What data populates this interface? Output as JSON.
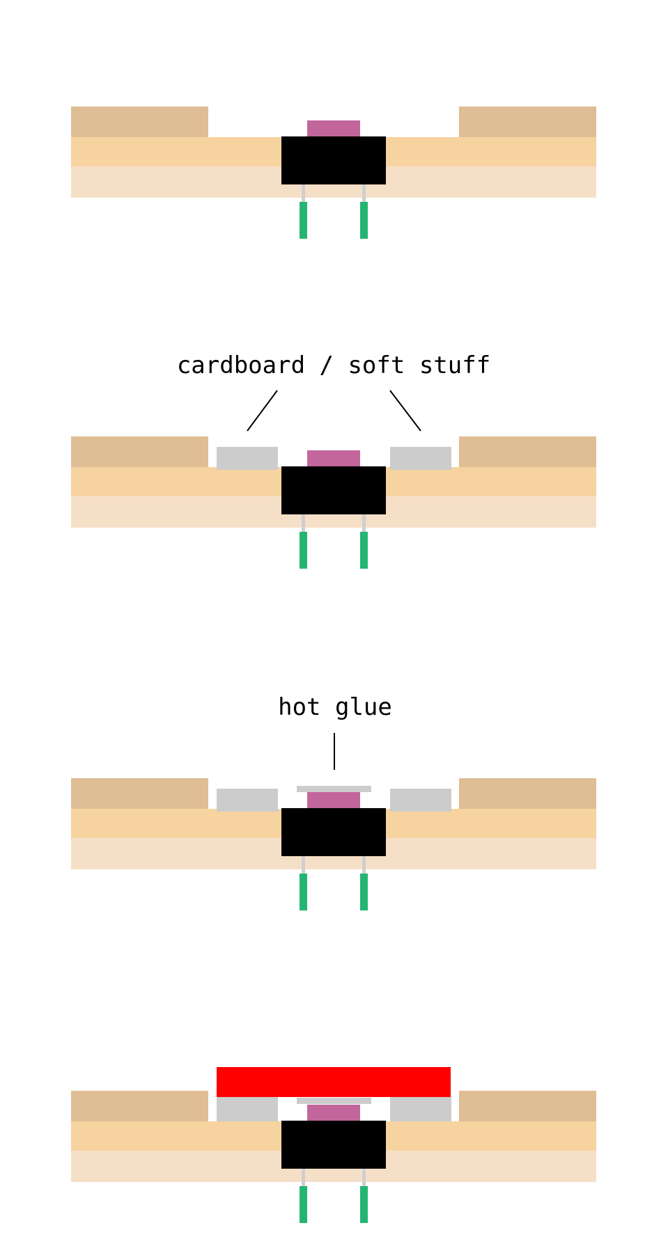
{
  "colors": {
    "background": "#ffffff",
    "board_top_layer": "#dfbd95",
    "board_middle_layer": "#f7d3a0",
    "board_bottom_layer": "#f6dfc7",
    "switch_body": "#000000",
    "switch_button": "#c3669b",
    "leg": "#cfcfcf",
    "pin": "#25b572",
    "padding": "#cccccc",
    "hot_glue": "#cccccc",
    "cap": "#ff0000",
    "leader_line": "#000000"
  },
  "panels": [
    {
      "name": "step-1-bare-switch",
      "padding": false,
      "glue": false,
      "cap": false,
      "label": null
    },
    {
      "name": "step-2-padding",
      "padding": true,
      "glue": false,
      "cap": false,
      "label": "cardboard / soft stuff"
    },
    {
      "name": "step-3-hot-glue",
      "padding": true,
      "glue": true,
      "cap": false,
      "label": "hot glue"
    },
    {
      "name": "step-4-cap",
      "padding": true,
      "glue": true,
      "cap": true,
      "label": null
    }
  ]
}
